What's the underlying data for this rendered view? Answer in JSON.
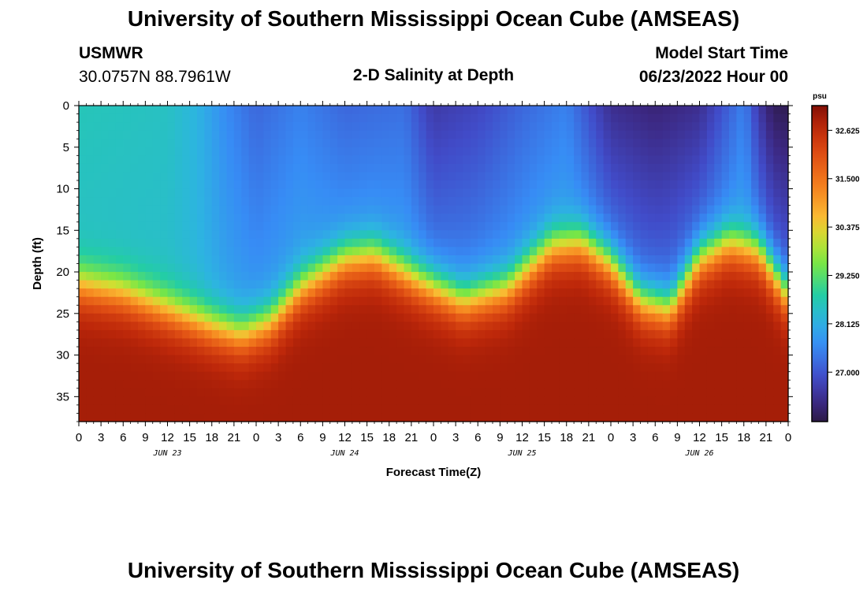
{
  "header": {
    "title": "University of Southern Mississippi Ocean Cube (AMSEAS)",
    "station": "USMWR",
    "coords": "30.0757N  88.7961W",
    "plot_title": "2-D Salinity at Depth",
    "model_label": "Model Start Time",
    "model_time": "06/23/2022 Hour 00"
  },
  "footer": {
    "title": "University of Southern Mississippi Ocean Cube (AMSEAS)"
  },
  "colors": {
    "background": "#ffffff",
    "text": "#000000"
  },
  "chart_data": {
    "type": "heatmap",
    "title": "2-D Salinity at Depth",
    "xlabel": "Forecast Time(Z)",
    "ylabel": "Depth (ft)",
    "units": "psu",
    "x_range_hours": [
      0,
      96
    ],
    "y_range_ft": [
      0,
      38
    ],
    "x_tick_labels": [
      "0",
      "3",
      "6",
      "9",
      "12",
      "15",
      "18",
      "21",
      "0",
      "3",
      "6",
      "9",
      "12",
      "15",
      "18",
      "21",
      "0",
      "3",
      "6",
      "9",
      "12",
      "15",
      "18",
      "21",
      "0",
      "3",
      "6",
      "9",
      "12",
      "15",
      "18",
      "21",
      "0"
    ],
    "y_ticks": [
      0,
      5,
      10,
      15,
      20,
      25,
      30,
      35
    ],
    "date_labels": [
      {
        "label": "JUN 23",
        "hour": 12
      },
      {
        "label": "JUN 24",
        "hour": 36
      },
      {
        "label": "JUN 25",
        "hour": 60
      },
      {
        "label": "JUN 26",
        "hour": 84
      }
    ],
    "colorbar": {
      "min": 25.85,
      "max": 33.2,
      "tick_values": [
        32.625,
        31.5,
        30.375,
        29.25,
        28.125,
        27.0
      ],
      "tick_labels": [
        "32.625",
        "31.500",
        "30.375",
        "29.250",
        "28.125",
        "27.000"
      ]
    },
    "halocline_depth_ft": {
      "hours": [
        0,
        6,
        12,
        18,
        22,
        26,
        30,
        36,
        40,
        46,
        52,
        58,
        64,
        68,
        72,
        76,
        80,
        84,
        88,
        92,
        96
      ],
      "depths": [
        21.5,
        22.5,
        24.5,
        26.5,
        27.5,
        26,
        22,
        18.5,
        18,
        21,
        23.5,
        22,
        17,
        16.5,
        19,
        23.5,
        24.5,
        18.5,
        16.5,
        17.5,
        23
      ]
    },
    "surface_salinity_psu": {
      "hours": [
        0,
        12,
        16,
        20,
        24,
        30,
        36,
        44,
        48,
        54,
        60,
        66,
        72,
        78,
        84,
        90,
        92,
        94,
        96
      ],
      "values": [
        28.6,
        28.5,
        28.2,
        27.6,
        27.2,
        27.5,
        27.2,
        27.3,
        26.6,
        26.8,
        27.2,
        27.5,
        26.4,
        26.2,
        26.4,
        27.5,
        26.6,
        26.0,
        25.95
      ]
    },
    "bottom_salinity_psu": 32.9
  }
}
